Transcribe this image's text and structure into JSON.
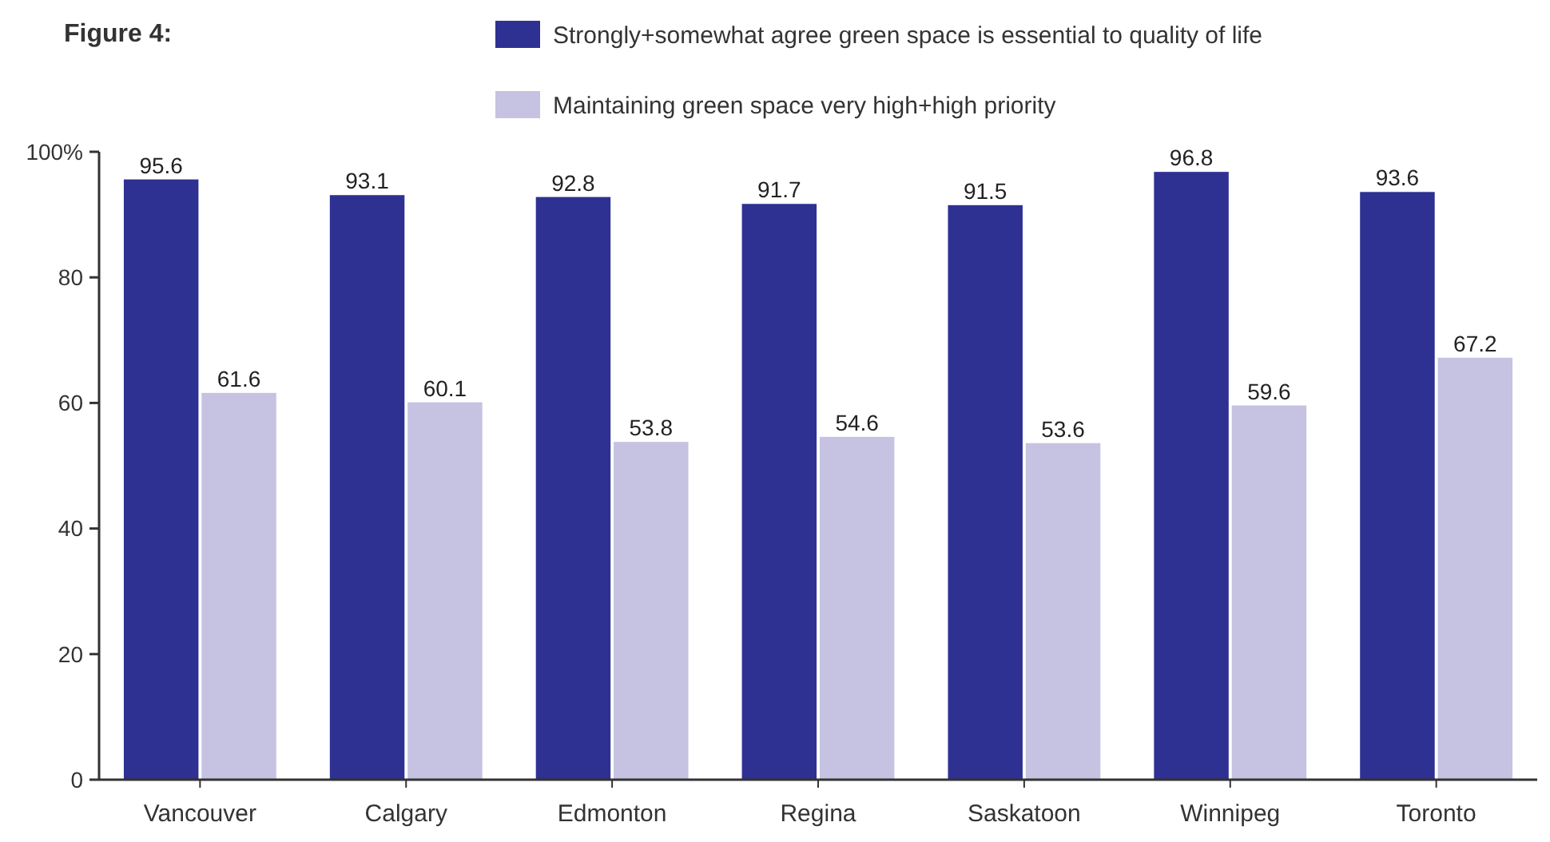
{
  "chart_data": {
    "type": "bar",
    "title": "Figure 4:",
    "categories": [
      "Vancouver",
      "Calgary",
      "Edmonton",
      "Regina",
      "Saskatoon",
      "Winnipeg",
      "Toronto"
    ],
    "series": [
      {
        "name": "Strongly+somewhat agree green space is essential to quality of life",
        "color": "#2e3192",
        "values": [
          95.6,
          93.1,
          92.8,
          91.7,
          91.5,
          96.8,
          93.6
        ]
      },
      {
        "name": "Maintaining green space very high+high priority",
        "color": "#c5c3e1",
        "values": [
          61.6,
          60.1,
          53.8,
          54.6,
          53.6,
          59.6,
          67.2
        ]
      }
    ],
    "ylim": [
      0,
      100
    ],
    "yticks": [
      0,
      20,
      40,
      60,
      80,
      {
        "value": 100,
        "label": "100%"
      }
    ],
    "data_labels": true,
    "legend": "top",
    "grid": false
  }
}
